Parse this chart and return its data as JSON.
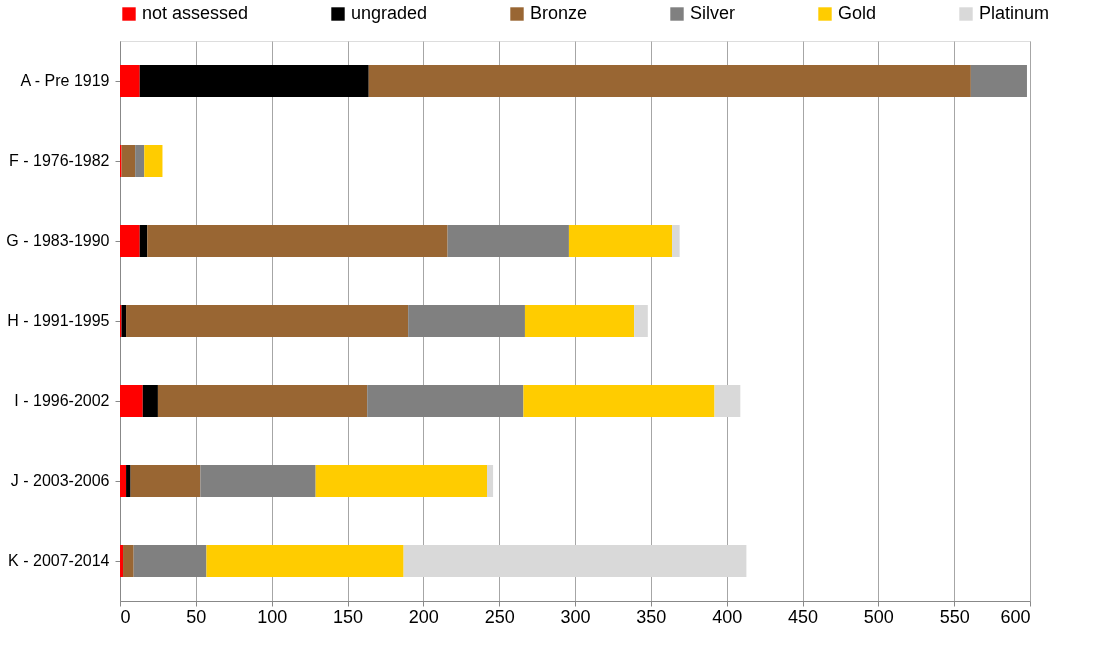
{
  "chart_data": {
    "type": "bar",
    "orientation": "horizontal",
    "stacked": true,
    "categories": [
      "A - Pre 1919",
      "F - 1976-1982",
      "G - 1983-1990",
      "H - 1991-1995",
      "I - 1996-2002",
      "J - 2003-2006",
      "K - 2007-2014"
    ],
    "series": [
      {
        "name": "not assessed",
        "color": "#ff0000",
        "values": [
          13,
          1,
          13,
          1,
          15,
          4,
          2
        ]
      },
      {
        "name": "ungraded",
        "color": "#000000",
        "values": [
          151,
          0,
          5,
          3,
          10,
          3,
          0
        ]
      },
      {
        "name": "Bronze",
        "color": "#996633",
        "values": [
          397,
          9,
          198,
          186,
          138,
          46,
          7
        ]
      },
      {
        "name": "Silver",
        "color": "#808080",
        "values": [
          37,
          6,
          80,
          77,
          103,
          76,
          48
        ]
      },
      {
        "name": "Gold",
        "color": "#ffcc00",
        "values": [
          0,
          12,
          68,
          72,
          126,
          113,
          130
        ]
      },
      {
        "name": "Platinum",
        "color": "#d9d9d9",
        "values": [
          0,
          0,
          5,
          9,
          17,
          4,
          226
        ]
      }
    ],
    "xlim": [
      0,
      600
    ],
    "xticks": [
      0,
      50,
      100,
      150,
      200,
      250,
      300,
      350,
      400,
      450,
      500,
      550,
      600
    ],
    "grid": "x",
    "legend": "top"
  }
}
